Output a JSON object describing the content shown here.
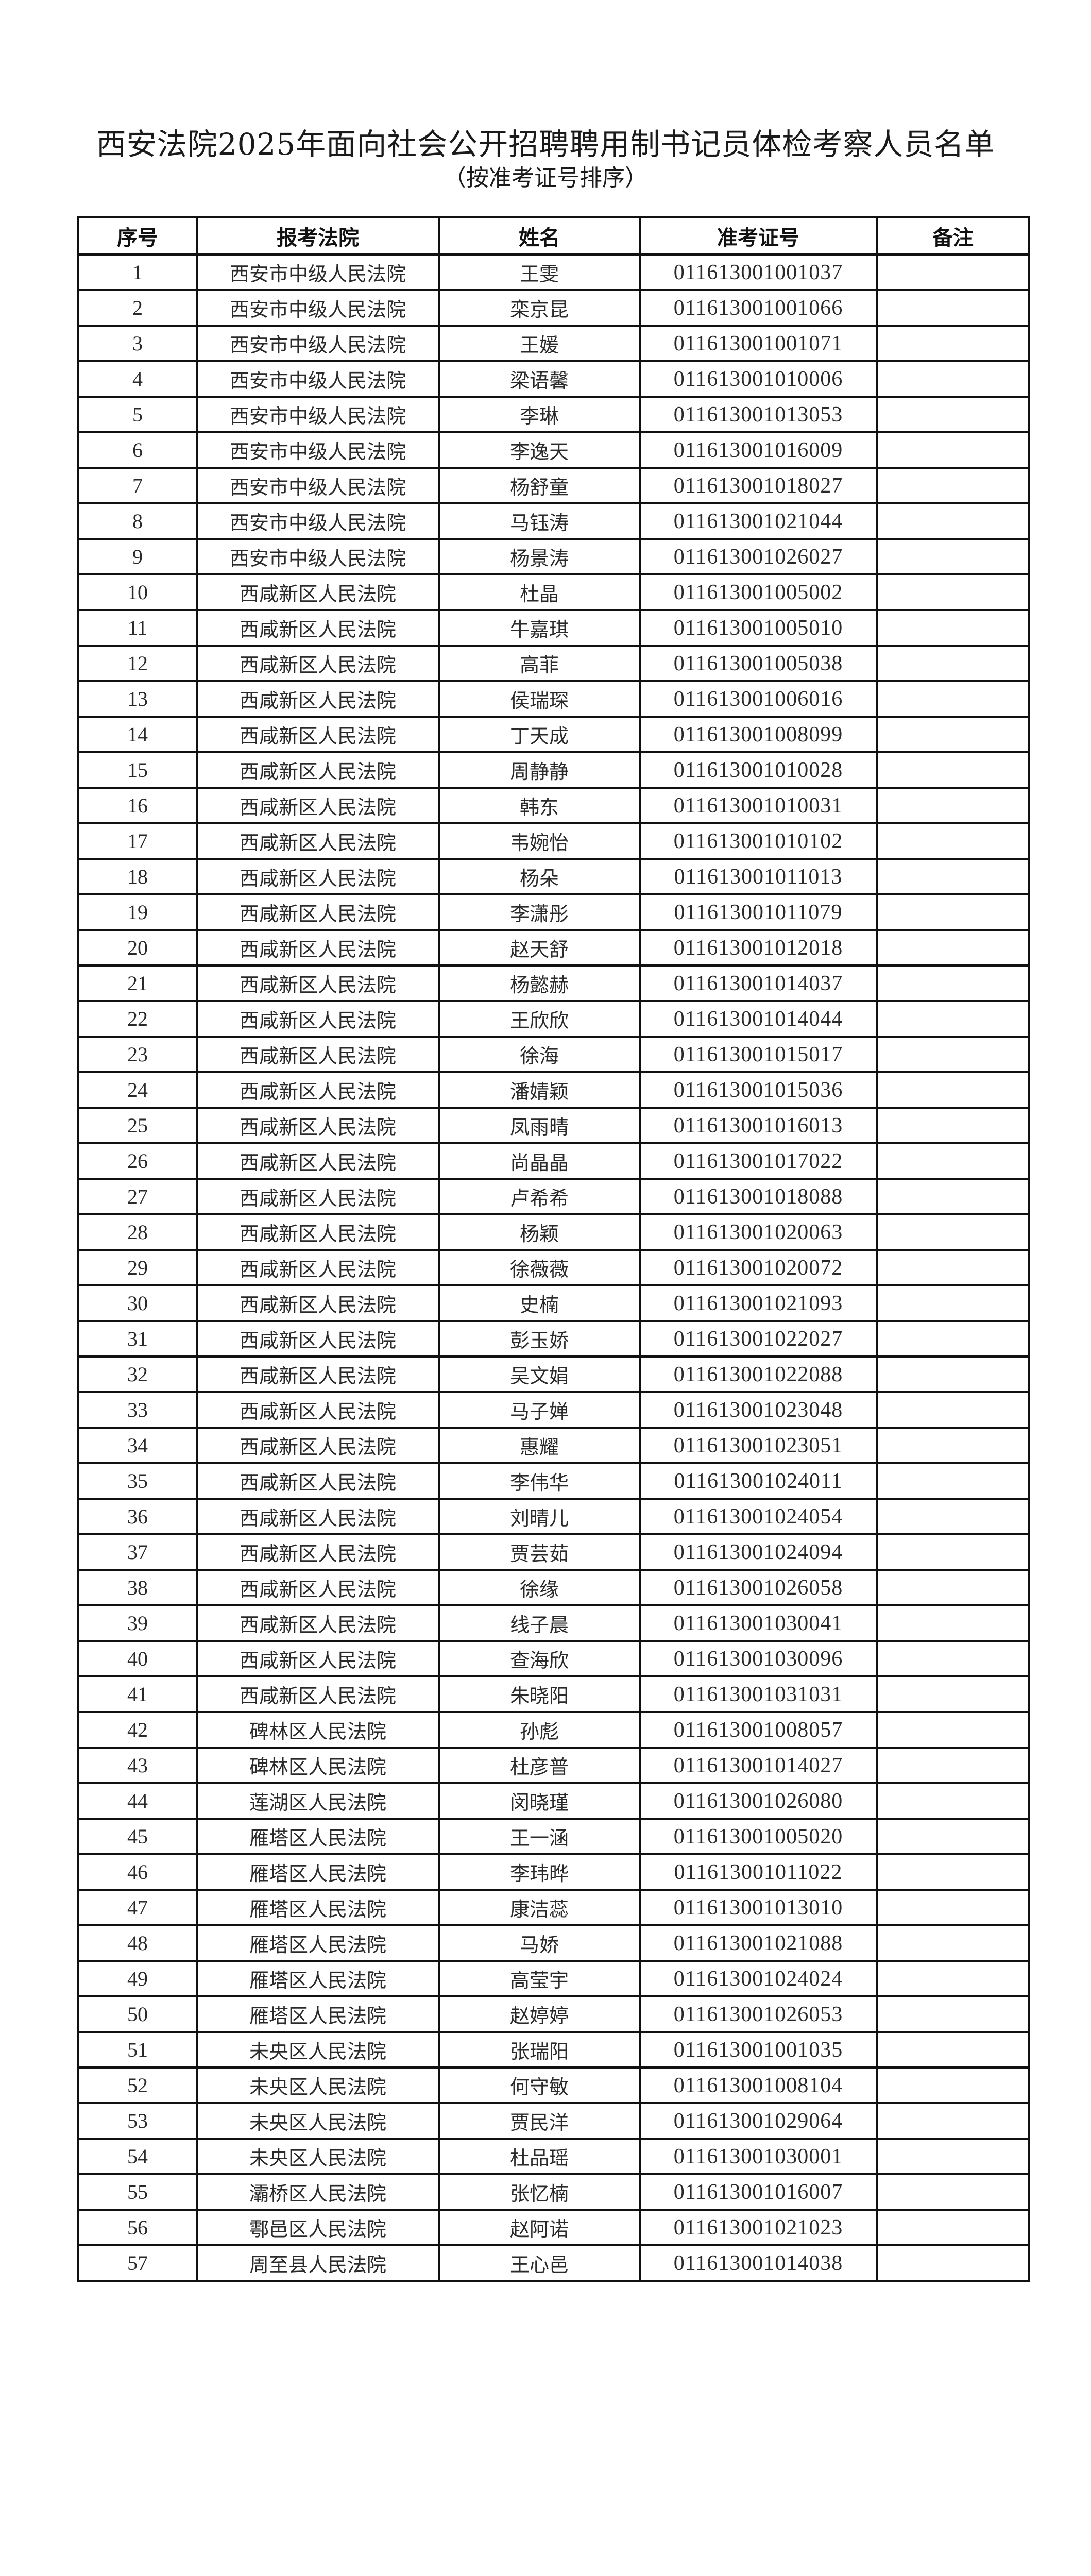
{
  "document": {
    "title": "西安法院2025年面向社会公开招聘聘用制书记员体检考察人员名单",
    "subtitle": "（按准考证号排序）"
  },
  "table": {
    "headers": [
      "序号",
      "报考法院",
      "姓名",
      "准考证号",
      "备注"
    ],
    "rows": [
      [
        "1",
        "西安市中级人民法院",
        "王雯",
        "011613001001037",
        ""
      ],
      [
        "2",
        "西安市中级人民法院",
        "栾京昆",
        "011613001001066",
        ""
      ],
      [
        "3",
        "西安市中级人民法院",
        "王媛",
        "011613001001071",
        ""
      ],
      [
        "4",
        "西安市中级人民法院",
        "梁语馨",
        "011613001010006",
        ""
      ],
      [
        "5",
        "西安市中级人民法院",
        "李琳",
        "011613001013053",
        ""
      ],
      [
        "6",
        "西安市中级人民法院",
        "李逸天",
        "011613001016009",
        ""
      ],
      [
        "7",
        "西安市中级人民法院",
        "杨舒童",
        "011613001018027",
        ""
      ],
      [
        "8",
        "西安市中级人民法院",
        "马钰涛",
        "011613001021044",
        ""
      ],
      [
        "9",
        "西安市中级人民法院",
        "杨景涛",
        "011613001026027",
        ""
      ],
      [
        "10",
        "西咸新区人民法院",
        "杜晶",
        "011613001005002",
        ""
      ],
      [
        "11",
        "西咸新区人民法院",
        "牛嘉琪",
        "011613001005010",
        ""
      ],
      [
        "12",
        "西咸新区人民法院",
        "高菲",
        "011613001005038",
        ""
      ],
      [
        "13",
        "西咸新区人民法院",
        "侯瑞琛",
        "011613001006016",
        ""
      ],
      [
        "14",
        "西咸新区人民法院",
        "丁天成",
        "011613001008099",
        ""
      ],
      [
        "15",
        "西咸新区人民法院",
        "周静静",
        "011613001010028",
        ""
      ],
      [
        "16",
        "西咸新区人民法院",
        "韩东",
        "011613001010031",
        ""
      ],
      [
        "17",
        "西咸新区人民法院",
        "韦婉怡",
        "011613001010102",
        ""
      ],
      [
        "18",
        "西咸新区人民法院",
        "杨朵",
        "011613001011013",
        ""
      ],
      [
        "19",
        "西咸新区人民法院",
        "李潇彤",
        "011613001011079",
        ""
      ],
      [
        "20",
        "西咸新区人民法院",
        "赵天舒",
        "011613001012018",
        ""
      ],
      [
        "21",
        "西咸新区人民法院",
        "杨懿赫",
        "011613001014037",
        ""
      ],
      [
        "22",
        "西咸新区人民法院",
        "王欣欣",
        "011613001014044",
        ""
      ],
      [
        "23",
        "西咸新区人民法院",
        "徐海",
        "011613001015017",
        ""
      ],
      [
        "24",
        "西咸新区人民法院",
        "潘婧颖",
        "011613001015036",
        ""
      ],
      [
        "25",
        "西咸新区人民法院",
        "凤雨晴",
        "011613001016013",
        ""
      ],
      [
        "26",
        "西咸新区人民法院",
        "尚晶晶",
        "011613001017022",
        ""
      ],
      [
        "27",
        "西咸新区人民法院",
        "卢希希",
        "011613001018088",
        ""
      ],
      [
        "28",
        "西咸新区人民法院",
        "杨颖",
        "011613001020063",
        ""
      ],
      [
        "29",
        "西咸新区人民法院",
        "徐薇薇",
        "011613001020072",
        ""
      ],
      [
        "30",
        "西咸新区人民法院",
        "史楠",
        "011613001021093",
        ""
      ],
      [
        "31",
        "西咸新区人民法院",
        "彭玉娇",
        "011613001022027",
        ""
      ],
      [
        "32",
        "西咸新区人民法院",
        "吴文娟",
        "011613001022088",
        ""
      ],
      [
        "33",
        "西咸新区人民法院",
        "马子婵",
        "011613001023048",
        ""
      ],
      [
        "34",
        "西咸新区人民法院",
        "惠耀",
        "011613001023051",
        ""
      ],
      [
        "35",
        "西咸新区人民法院",
        "李伟华",
        "011613001024011",
        ""
      ],
      [
        "36",
        "西咸新区人民法院",
        "刘晴儿",
        "011613001024054",
        ""
      ],
      [
        "37",
        "西咸新区人民法院",
        "贾芸茹",
        "011613001024094",
        ""
      ],
      [
        "38",
        "西咸新区人民法院",
        "徐缘",
        "011613001026058",
        ""
      ],
      [
        "39",
        "西咸新区人民法院",
        "线子晨",
        "011613001030041",
        ""
      ],
      [
        "40",
        "西咸新区人民法院",
        "查海欣",
        "011613001030096",
        ""
      ],
      [
        "41",
        "西咸新区人民法院",
        "朱晓阳",
        "011613001031031",
        ""
      ],
      [
        "42",
        "碑林区人民法院",
        "孙彪",
        "011613001008057",
        ""
      ],
      [
        "43",
        "碑林区人民法院",
        "杜彦普",
        "011613001014027",
        ""
      ],
      [
        "44",
        "莲湖区人民法院",
        "闵晓瑾",
        "011613001026080",
        ""
      ],
      [
        "45",
        "雁塔区人民法院",
        "王一涵",
        "011613001005020",
        ""
      ],
      [
        "46",
        "雁塔区人民法院",
        "李玮晔",
        "011613001011022",
        ""
      ],
      [
        "47",
        "雁塔区人民法院",
        "康洁蕊",
        "011613001013010",
        ""
      ],
      [
        "48",
        "雁塔区人民法院",
        "马娇",
        "011613001021088",
        ""
      ],
      [
        "49",
        "雁塔区人民法院",
        "高莹宇",
        "011613001024024",
        ""
      ],
      [
        "50",
        "雁塔区人民法院",
        "赵婷婷",
        "011613001026053",
        ""
      ],
      [
        "51",
        "未央区人民法院",
        "张瑞阳",
        "011613001001035",
        ""
      ],
      [
        "52",
        "未央区人民法院",
        "何守敏",
        "011613001008104",
        ""
      ],
      [
        "53",
        "未央区人民法院",
        "贾民洋",
        "011613001029064",
        ""
      ],
      [
        "54",
        "未央区人民法院",
        "杜品瑶",
        "011613001030001",
        ""
      ],
      [
        "55",
        "灞桥区人民法院",
        "张忆楠",
        "011613001016007",
        ""
      ],
      [
        "56",
        "鄠邑区人民法院",
        "赵阿诺",
        "011613001021023",
        ""
      ],
      [
        "57",
        "周至县人民法院",
        "王心邑",
        "011613001014038",
        ""
      ]
    ]
  }
}
